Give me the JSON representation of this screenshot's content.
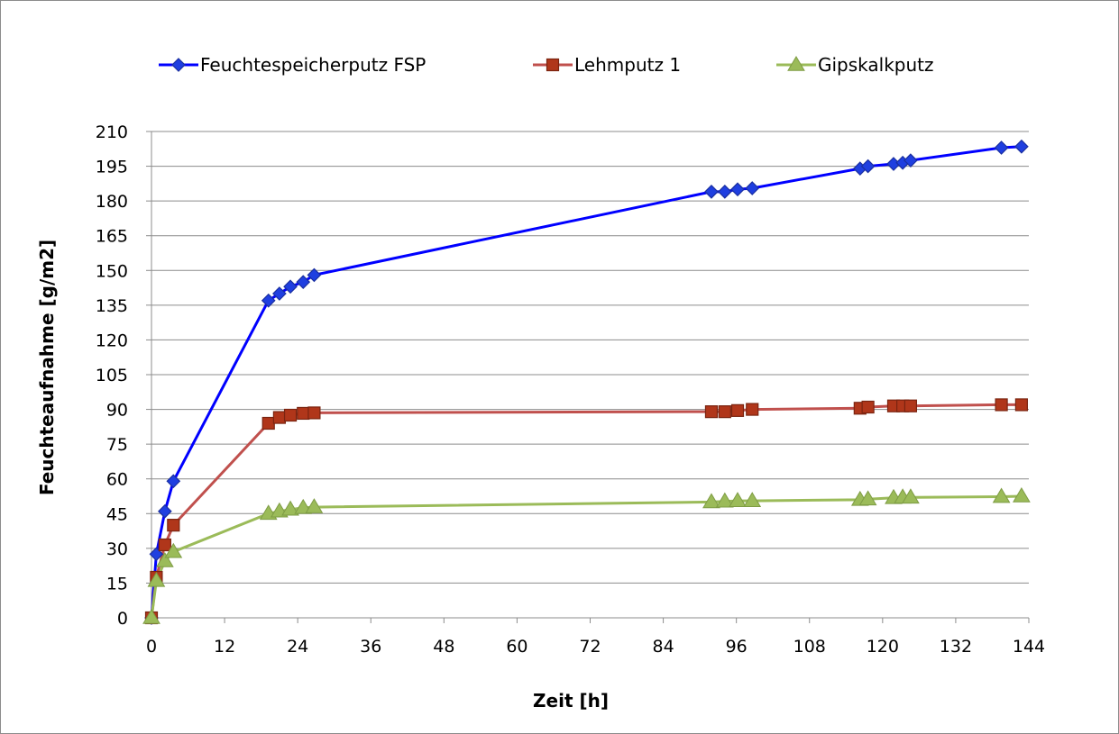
{
  "chart_data": {
    "type": "line",
    "title": "",
    "xlabel": "Zeit [h]",
    "ylabel": "Feuchteaufnahme [g/m2]",
    "xlim": [
      0,
      144
    ],
    "ylim": [
      0,
      210
    ],
    "xticks": [
      0,
      12,
      24,
      36,
      48,
      60,
      72,
      84,
      96,
      108,
      120,
      132,
      144
    ],
    "yticks": [
      0,
      15,
      30,
      45,
      60,
      75,
      90,
      105,
      120,
      135,
      150,
      165,
      180,
      195,
      210
    ],
    "grid": "horizontal",
    "legend_position": "top",
    "series": [
      {
        "name": "Feuchtespeicherputz FSP",
        "color": "#0000ff",
        "marker_fill": "#1f3fe0",
        "marker": "diamond",
        "points": [
          [
            0,
            0
          ],
          [
            0.8,
            27.5
          ],
          [
            2.2,
            46
          ],
          [
            3.6,
            59
          ],
          [
            19.2,
            137
          ],
          [
            21,
            140
          ],
          [
            22.8,
            143
          ],
          [
            24.9,
            145
          ],
          [
            26.7,
            148
          ],
          [
            91.9,
            184
          ],
          [
            94.1,
            184
          ],
          [
            96.2,
            185
          ],
          [
            98.6,
            185.5
          ],
          [
            116.3,
            194
          ],
          [
            117.6,
            195
          ],
          [
            121.8,
            196
          ],
          [
            123.3,
            196.5
          ],
          [
            124.6,
            197.5
          ],
          [
            139.5,
            203
          ],
          [
            142.8,
            203.5
          ]
        ]
      },
      {
        "name": "Lehmputz 1",
        "color": "#c0504d",
        "marker_fill": "#b0361a",
        "marker": "square",
        "points": [
          [
            0,
            0
          ],
          [
            0.8,
            17.5
          ],
          [
            2.2,
            31.5
          ],
          [
            3.6,
            40
          ],
          [
            19.2,
            84
          ],
          [
            21,
            86.5
          ],
          [
            22.8,
            87.5
          ],
          [
            24.9,
            88.3
          ],
          [
            26.7,
            88.5
          ],
          [
            91.9,
            89
          ],
          [
            94.1,
            89
          ],
          [
            96.2,
            89.5
          ],
          [
            98.6,
            90
          ],
          [
            116.3,
            90.5
          ],
          [
            117.6,
            91
          ],
          [
            121.8,
            91.5
          ],
          [
            123.3,
            91.5
          ],
          [
            124.6,
            91.5
          ],
          [
            139.5,
            92
          ],
          [
            142.8,
            92
          ]
        ]
      },
      {
        "name": "Gipskalkputz",
        "color": "#9bbb59",
        "marker_fill": "#9bbb59",
        "marker": "triangle",
        "points": [
          [
            0,
            0
          ],
          [
            0.8,
            16
          ],
          [
            2.2,
            24.5
          ],
          [
            3.6,
            28.5
          ],
          [
            19.2,
            45
          ],
          [
            21,
            46
          ],
          [
            22.8,
            46.8
          ],
          [
            24.9,
            47.5
          ],
          [
            26.7,
            47.8
          ],
          [
            91.9,
            50
          ],
          [
            94.1,
            50.3
          ],
          [
            96.2,
            50.5
          ],
          [
            98.6,
            50.5
          ],
          [
            116.3,
            51
          ],
          [
            117.6,
            51.2
          ],
          [
            121.8,
            51.8
          ],
          [
            123.3,
            52
          ],
          [
            124.6,
            52
          ],
          [
            139.5,
            52.3
          ],
          [
            142.8,
            52.5
          ]
        ]
      }
    ]
  }
}
